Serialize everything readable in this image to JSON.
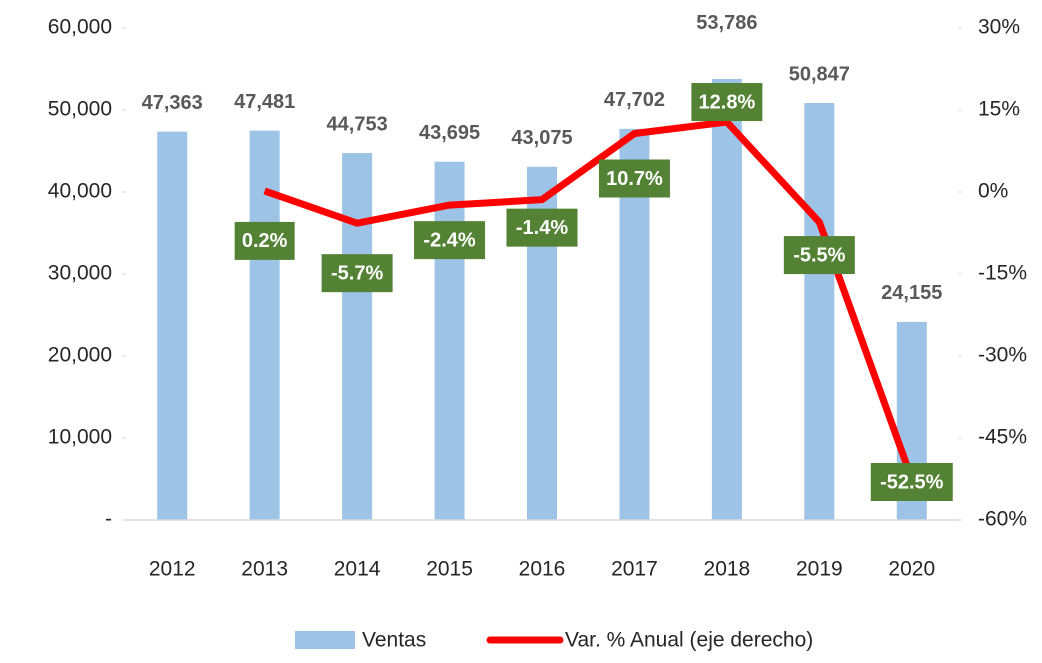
{
  "chart_data": {
    "type": "bar-line",
    "categories": [
      "2012",
      "2013",
      "2014",
      "2015",
      "2016",
      "2017",
      "2018",
      "2019",
      "2020"
    ],
    "series": [
      {
        "name": "Ventas",
        "type": "bar",
        "color": "#9dc3e6",
        "values": [
          47363,
          47481,
          44753,
          43695,
          43075,
          47702,
          53786,
          50847,
          24155
        ],
        "value_labels": [
          "47,363",
          "47,481",
          "44,753",
          "43,695",
          "43,075",
          "47,702",
          "53,786",
          "50,847",
          "24,155"
        ]
      },
      {
        "name": "Var. % Anual (eje derecho)",
        "type": "line",
        "axis": "y2",
        "color": "#ff0000",
        "label_color": "#548235",
        "values": [
          null,
          0.2,
          -5.7,
          -2.4,
          -1.4,
          10.7,
          12.8,
          -5.5,
          -52.5
        ],
        "value_labels": [
          null,
          "0.2%",
          "-5.7%",
          "-2.4%",
          "-1.4%",
          "10.7%",
          "12.8%",
          "-5.5%",
          "-52.5%"
        ]
      }
    ],
    "ylim": [
      0,
      60000
    ],
    "yticks": [
      {
        "value": 0,
        "label": "-"
      },
      {
        "value": 10000,
        "label": "10,000"
      },
      {
        "value": 20000,
        "label": "20,000"
      },
      {
        "value": 30000,
        "label": "30,000"
      },
      {
        "value": 40000,
        "label": "40,000"
      },
      {
        "value": 50000,
        "label": "50,000"
      },
      {
        "value": 60000,
        "label": "60,000"
      }
    ],
    "y2lim": [
      -60,
      30
    ],
    "y2ticks": [
      {
        "value": -60,
        "label": "-60%"
      },
      {
        "value": -45,
        "label": "-45%"
      },
      {
        "value": -30,
        "label": "-30%"
      },
      {
        "value": -15,
        "label": "-15%"
      },
      {
        "value": 0,
        "label": "0%"
      },
      {
        "value": 15,
        "label": "15%"
      },
      {
        "value": 30,
        "label": "30%"
      }
    ],
    "grid": false,
    "legend": "bottom"
  }
}
